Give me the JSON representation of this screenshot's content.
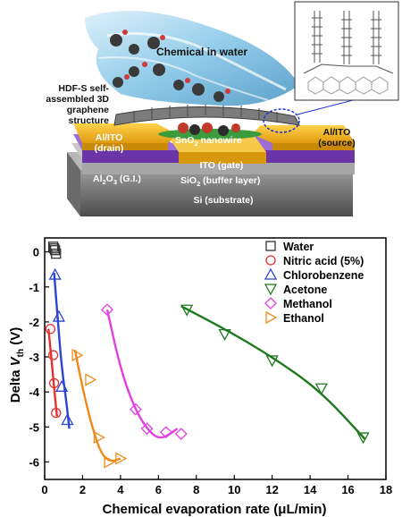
{
  "illustration": {
    "labels": {
      "chemical": "Chemical in water",
      "hdf_line1": "HDF-S self-",
      "hdf_line2": "assembled 3D",
      "hdf_line3": "graphene",
      "hdf_line4": "structure",
      "drain_line1": "Al/ITO",
      "drain_line2": "(drain)",
      "source_line1": "Al/ITO",
      "source_line2": "(source)",
      "nanowire": "SnO",
      "nanowire_sub": "2",
      "nanowire_rest": " nanowire",
      "gate": "ITO (gate)",
      "gi_main": "Al",
      "gi_sub1": "2",
      "gi_o": "O",
      "gi_sub2": "3",
      "gi_rest": " (G.I.)",
      "buffer_main": "SiO",
      "buffer_sub": "2",
      "buffer_rest": " (buffer layer)",
      "substrate": "Si (substrate)"
    },
    "colors": {
      "gold": "#f2b51c",
      "purple": "#7a3fb8",
      "gray": "#8e8e8e",
      "water": "#6fb7dc"
    }
  },
  "chart_data": {
    "type": "scatter",
    "xlabel": "Chemical evaporation rate (μL/min)",
    "ylabel_main": "Delta ",
    "ylabel_italic": "V",
    "ylabel_sub": "th",
    "ylabel_unit": " (V)",
    "xlim": [
      0,
      18
    ],
    "ylim": [
      -6.5,
      0.4
    ],
    "xticks": [
      0,
      2,
      4,
      6,
      8,
      10,
      12,
      14,
      16,
      18
    ],
    "yticks": [
      0,
      -1,
      -2,
      -3,
      -4,
      -5,
      -6
    ],
    "legend_position": "top-right",
    "series": [
      {
        "name": "Water",
        "marker": "square",
        "color": "#333333",
        "x": [
          0.45,
          0.55,
          0.6,
          0.5
        ],
        "y": [
          0.15,
          0.05,
          -0.05,
          0.1
        ],
        "fit": []
      },
      {
        "name": "Nitric acid (5%)",
        "marker": "circle",
        "color": "#e8312f",
        "x": [
          0.3,
          0.45,
          0.5,
          0.6
        ],
        "y": [
          -2.2,
          -2.95,
          -3.75,
          -4.6
        ],
        "fit": [
          [
            0.2,
            -2.2
          ],
          [
            0.35,
            -3.0
          ],
          [
            0.5,
            -3.9
          ],
          [
            0.65,
            -4.7
          ]
        ]
      },
      {
        "name": "Chlorobenzene",
        "marker": "triangle-up",
        "color": "#2b44d6",
        "x": [
          0.55,
          0.75,
          0.9,
          1.2
        ],
        "y": [
          -0.65,
          -1.85,
          -3.85,
          -4.8
        ],
        "fit": [
          [
            0.5,
            -0.6
          ],
          [
            0.7,
            -2.0
          ],
          [
            0.9,
            -3.3
          ],
          [
            1.15,
            -4.3
          ],
          [
            1.3,
            -5.05
          ]
        ]
      },
      {
        "name": "Acetone",
        "marker": "triangle-down",
        "color": "#1f7a1f",
        "x": [
          7.5,
          9.5,
          12.0,
          14.6,
          16.8
        ],
        "y": [
          -1.65,
          -2.35,
          -3.1,
          -3.9,
          -5.3
        ],
        "fit": [
          [
            7.2,
            -1.55
          ],
          [
            9.5,
            -2.2
          ],
          [
            12.0,
            -3.0
          ],
          [
            14.5,
            -3.95
          ],
          [
            16.9,
            -5.35
          ]
        ]
      },
      {
        "name": "Methanol",
        "marker": "diamond",
        "color": "#e23fe0",
        "x": [
          3.3,
          4.8,
          5.4,
          6.4,
          7.2
        ],
        "y": [
          -1.65,
          -4.5,
          -5.05,
          -5.15,
          -5.2
        ],
        "fit": [
          [
            3.3,
            -1.65
          ],
          [
            4.0,
            -3.35
          ],
          [
            4.8,
            -4.55
          ],
          [
            5.6,
            -5.2
          ],
          [
            6.2,
            -5.35
          ],
          [
            7.0,
            -5.05
          ]
        ]
      },
      {
        "name": "Ethanol",
        "marker": "triangle-right",
        "color": "#ef8a1a",
        "x": [
          1.7,
          2.4,
          2.85,
          3.4,
          4.0
        ],
        "y": [
          -2.95,
          -3.65,
          -5.3,
          -6.0,
          -5.9
        ],
        "fit": [
          [
            1.6,
            -2.8
          ],
          [
            2.0,
            -3.9
          ],
          [
            2.5,
            -5.0
          ],
          [
            3.0,
            -5.8
          ],
          [
            3.5,
            -6.0
          ],
          [
            4.0,
            -5.9
          ]
        ]
      }
    ]
  }
}
